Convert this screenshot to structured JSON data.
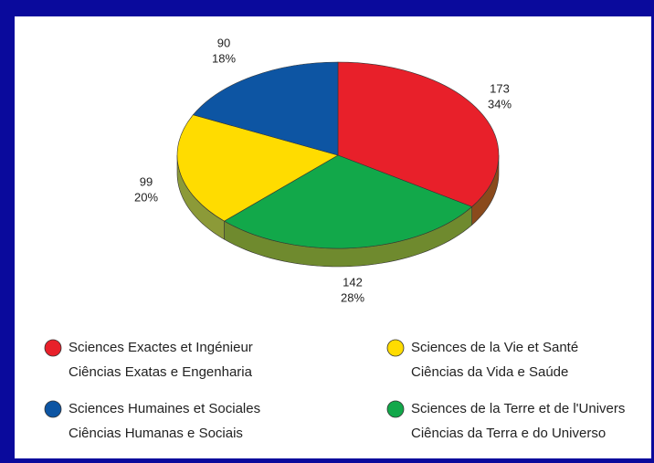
{
  "chart_data": {
    "type": "pie",
    "categories": [
      "Sciences Exactes et Ingénieur",
      "Sciences de la Terre et de l'Univers",
      "Sciences de la Vie et Santé",
      "Sciences Humaines et Sociales"
    ],
    "categories_pt": [
      "Ciências Exatas e Engenharia",
      "Ciências da Terra e do Universo",
      "Ciências da Vida e Saúde",
      "Ciências Humanas e Sociais"
    ],
    "values": [
      173,
      142,
      99,
      90
    ],
    "percents": [
      34,
      28,
      20,
      18
    ],
    "percent_labels": [
      "34%",
      "28%",
      "20%",
      "18%"
    ],
    "colors": [
      "#e8202a",
      "#12a84a",
      "#ffdc00",
      "#0d55a3"
    ],
    "side_colors": [
      "#8a4a1c",
      "#6f8a2e",
      "#8c9a38",
      "#2d4a6a"
    ]
  }
}
